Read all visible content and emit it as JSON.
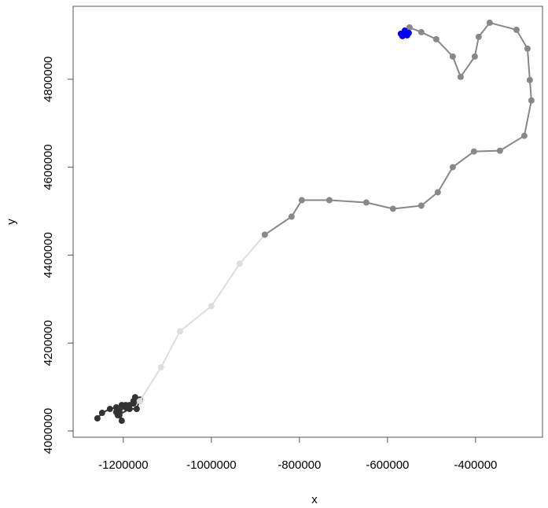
{
  "chart_data": {
    "type": "line",
    "x_label": "x",
    "y_label": "y",
    "xlim": [
      -1314000,
      -248000
    ],
    "ylim": [
      3985700,
      4966000
    ],
    "xticks": [
      -1200000,
      -1000000,
      -800000,
      -600000,
      -400000
    ],
    "yticks": [
      4000000,
      4200000,
      4400000,
      4600000,
      4800000
    ],
    "series": [
      {
        "color": "#333333",
        "x": [
          -1258900,
          -1248200,
          -1230400,
          -1216100,
          -1208900,
          -1203600,
          -1194600,
          -1185700,
          -1176800,
          -1173200,
          -1162500,
          -1169600,
          -1185700,
          -1212500,
          -1203600,
          -1208900,
          -1216100,
          -1194600,
          -1176800,
          -1162500
        ],
        "values": [
          4028600,
          4041100,
          4050000,
          4053600,
          4046400,
          4058900,
          4058900,
          4058900,
          4067900,
          4076800,
          4071400,
          4050000,
          4050000,
          4035700,
          4023200,
          4035700,
          4042900,
          4053600,
          4062500,
          4067900
        ]
      },
      {
        "color": "#dddddd",
        "x": [
          -1162500,
          -1114300,
          -1071400,
          -1000000,
          -935700,
          -878600
        ],
        "values": [
          4067900,
          4144600,
          4226800,
          4283900,
          4380400,
          4446400
        ]
      },
      {
        "color": "#888888",
        "x": [
          -878600,
          -817900,
          -794600,
          -732100,
          -648200,
          -587500,
          -523200,
          -485700,
          -451800,
          -403600,
          -344600,
          -289300,
          -273200,
          -276800,
          -282100,
          -307100,
          -367900,
          -392900,
          -401800,
          -433900,
          -451800,
          -489300,
          -523200,
          -550000
        ],
        "values": [
          4446400,
          4487500,
          4525000,
          4525000,
          4519600,
          4505400,
          4512500,
          4542900,
          4600000,
          4635700,
          4637500,
          4671400,
          4751800,
          4798200,
          4869600,
          4912500,
          4928600,
          4896400,
          4851800,
          4805400,
          4851800,
          4891100,
          4907100,
          4917900
        ]
      },
      {
        "color": "#0000ff",
        "x": [
          -569600,
          -560700,
          -551800,
          -566100,
          -555400
        ],
        "values": [
          4903600,
          4910700,
          4905400,
          4898200,
          4900000
        ]
      }
    ]
  }
}
